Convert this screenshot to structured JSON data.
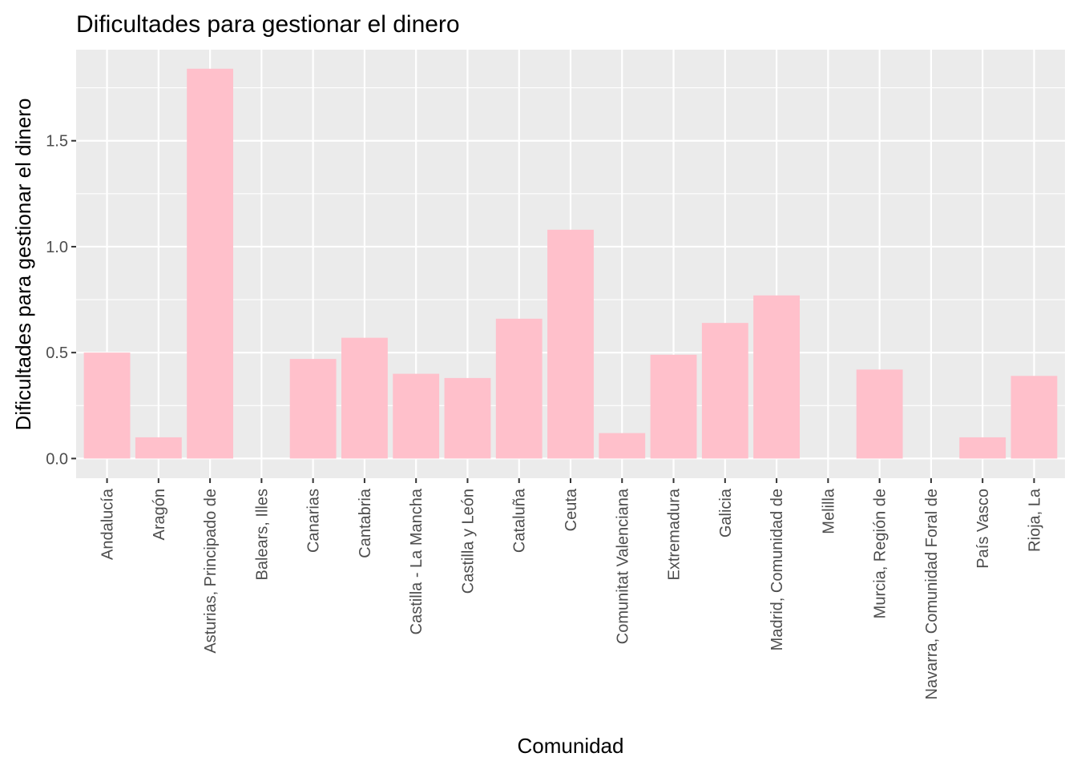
{
  "chart_data": {
    "type": "bar",
    "title": "Dificultades para gestionar el dinero",
    "xlabel": "Comunidad",
    "ylabel": "Dificultades para gestionar el dinero",
    "categories": [
      "Andalucía",
      "Aragón",
      "Asturias, Principado de",
      "Balears, Illes",
      "Canarias",
      "Cantabria",
      "Castilla - La Mancha",
      "Castilla y León",
      "Cataluña",
      "Ceuta",
      "Comunitat Valenciana",
      "Extremadura",
      "Galicia",
      "Madrid, Comunidad de",
      "Melilla",
      "Murcia, Región de",
      "Navarra, Comunidad Foral de",
      "País Vasco",
      "Rioja, La"
    ],
    "values": [
      0.5,
      0.1,
      1.84,
      0.0,
      0.47,
      0.57,
      0.4,
      0.38,
      0.66,
      1.08,
      0.12,
      0.49,
      0.64,
      0.77,
      0.0,
      0.42,
      0.0,
      0.1,
      0.39
    ],
    "ylim": [
      -0.093,
      1.93
    ],
    "yticks": [
      0.0,
      0.5,
      1.0,
      1.5
    ],
    "ytick_labels": [
      "0.0",
      "0.5",
      "1.0",
      "1.5"
    ],
    "grid": true,
    "bar_color": "#FFC0CB",
    "panel_color": "#EBEBEB",
    "grid_color": "#FFFFFF"
  }
}
